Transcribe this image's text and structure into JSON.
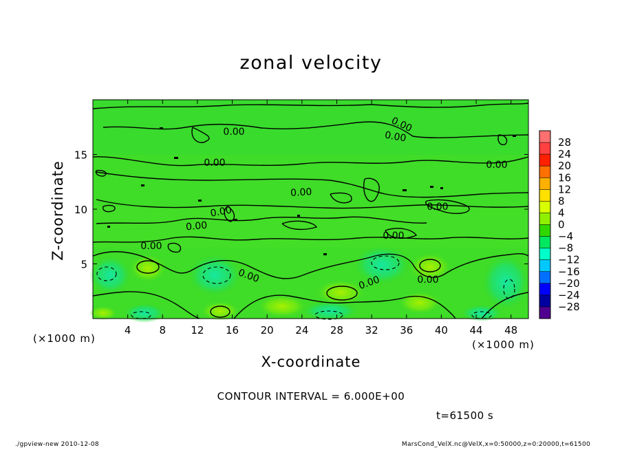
{
  "chart_data": {
    "type": "heatmap",
    "title": "zonal velocity",
    "xlabel": "X-coordinate",
    "ylabel": "Z-coordinate",
    "x_unit": "(×1000 m)",
    "y_unit": "(×1000 m)",
    "xlim": [
      0,
      50
    ],
    "ylim": [
      0,
      20
    ],
    "x_ticks": [
      4,
      8,
      12,
      16,
      20,
      24,
      28,
      32,
      36,
      40,
      44,
      48
    ],
    "y_ticks": [
      5,
      10,
      15
    ],
    "colorbar": {
      "labels": [
        "28",
        "24",
        "20",
        "16",
        "12",
        "8",
        "4",
        "0",
        "−4",
        "−8",
        "−12",
        "−16",
        "−20",
        "−24",
        "−28"
      ],
      "colors": [
        "#ff7070",
        "#ff4040",
        "#ff2000",
        "#ff7000",
        "#ffb000",
        "#ffe000",
        "#d8ff00",
        "#90f000",
        "#30d800",
        "#00e860",
        "#00ffc8",
        "#00c8ff",
        "#0070ff",
        "#0000ff",
        "#0000a0",
        "#500090"
      ]
    },
    "contour_label": "0.00",
    "contour_interval_text": "CONTOUR INTERVAL = 6.000E+00",
    "time_text": "t=61500 s"
  },
  "footer": {
    "left": "./gpview-new  2010-12-08",
    "right": "MarsCond_VelX.nc@VelX,x=0:50000,z=0:20000,t=61500"
  }
}
